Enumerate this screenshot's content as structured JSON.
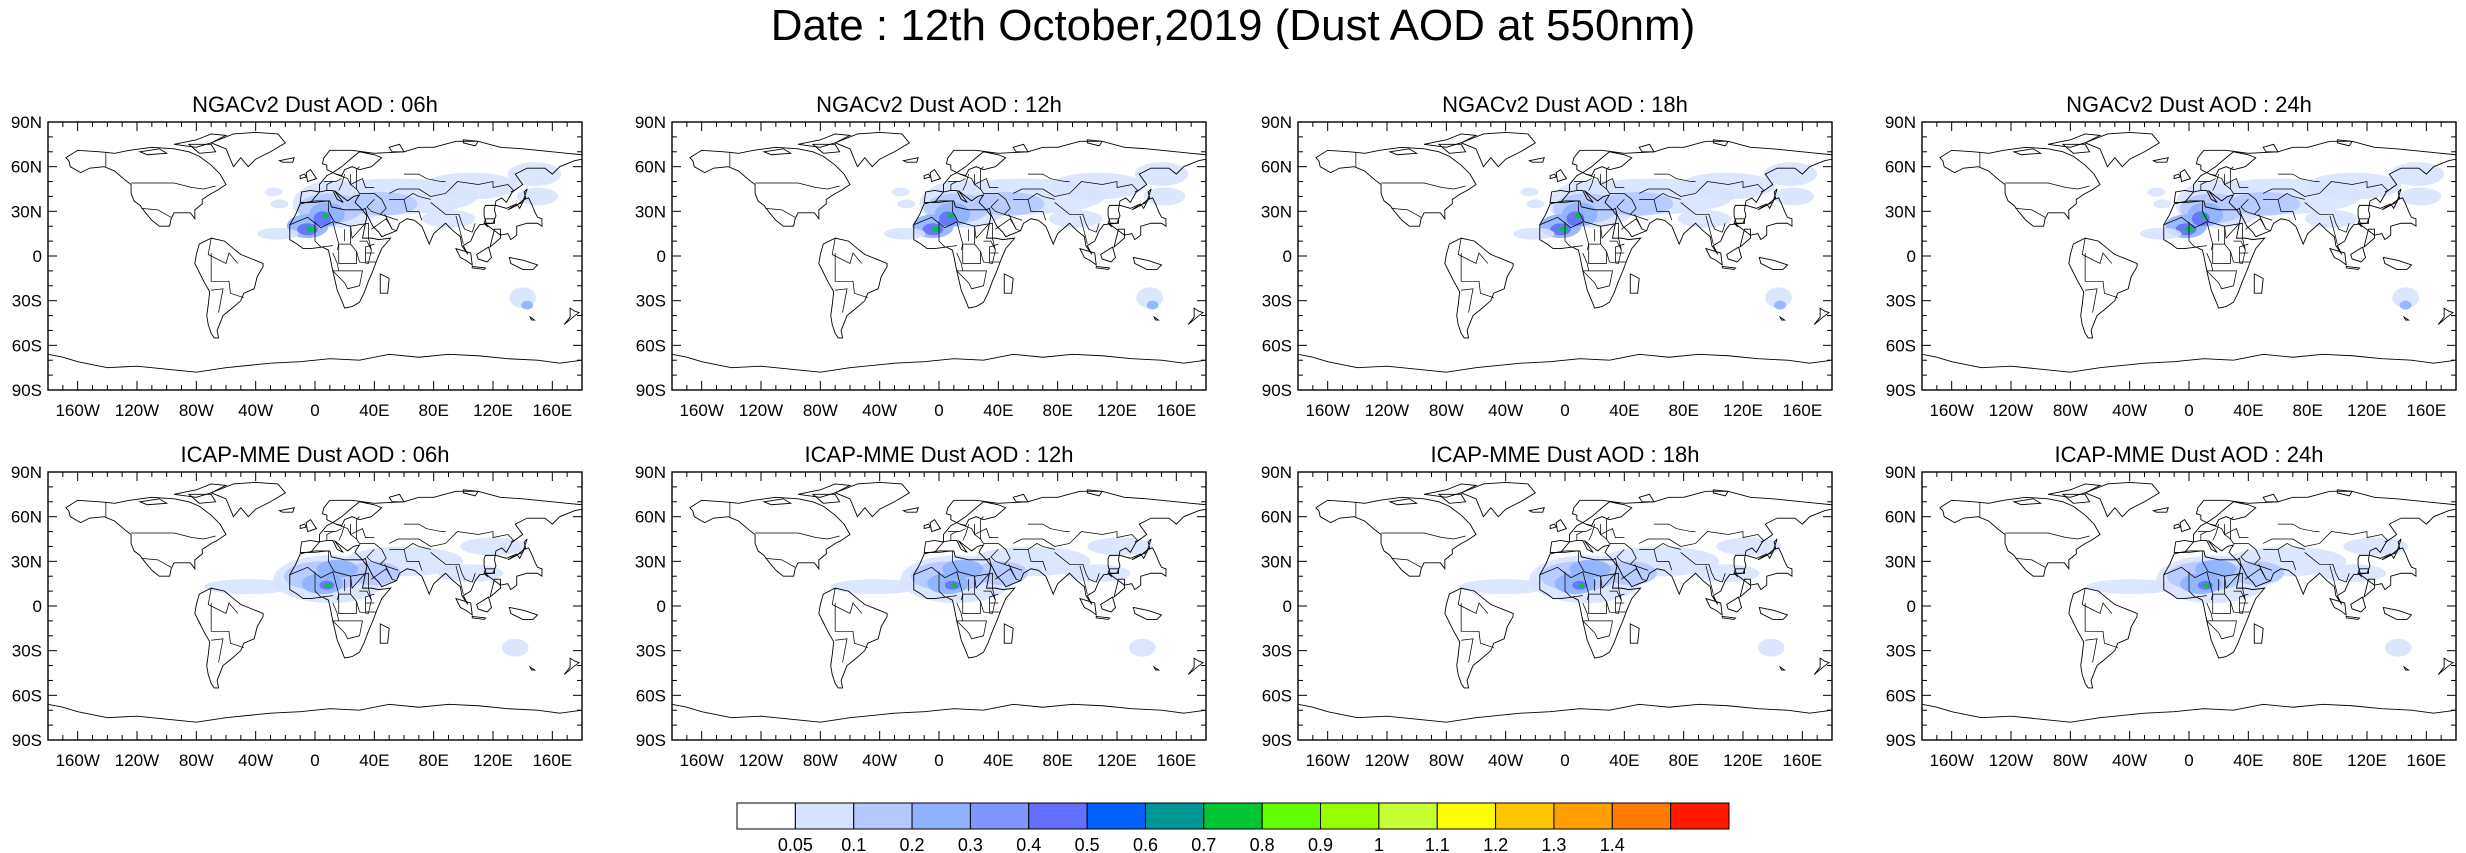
{
  "figure": {
    "title": "Date : 12th October,2019 (Dust AOD at 550nm)"
  },
  "panels": [
    {
      "title": "NGACv2 Dust AOD : 06h",
      "model": "NGACv2",
      "lead": "06h"
    },
    {
      "title": "NGACv2 Dust AOD : 12h",
      "model": "NGACv2",
      "lead": "12h"
    },
    {
      "title": "NGACv2 Dust AOD : 18h",
      "model": "NGACv2",
      "lead": "18h"
    },
    {
      "title": "NGACv2 Dust AOD : 24h",
      "model": "NGACv2",
      "lead": "24h"
    },
    {
      "title": "ICAP-MME Dust AOD : 06h",
      "model": "ICAP-MME",
      "lead": "06h"
    },
    {
      "title": "ICAP-MME Dust AOD : 12h",
      "model": "ICAP-MME",
      "lead": "12h"
    },
    {
      "title": "ICAP-MME Dust AOD : 18h",
      "model": "ICAP-MME",
      "lead": "18h"
    },
    {
      "title": "ICAP-MME Dust AOD : 24h",
      "model": "ICAP-MME",
      "lead": "24h"
    }
  ],
  "axes": {
    "lon_ticks": [
      {
        "value": -160,
        "label": "160W"
      },
      {
        "value": -120,
        "label": "120W"
      },
      {
        "value": -80,
        "label": "80W"
      },
      {
        "value": -40,
        "label": "40W"
      },
      {
        "value": 0,
        "label": "0"
      },
      {
        "value": 40,
        "label": "40E"
      },
      {
        "value": 80,
        "label": "80E"
      },
      {
        "value": 120,
        "label": "120E"
      },
      {
        "value": 160,
        "label": "160E"
      }
    ],
    "lat_ticks": [
      {
        "value": 90,
        "label": "90N"
      },
      {
        "value": 60,
        "label": "60N"
      },
      {
        "value": 30,
        "label": "30N"
      },
      {
        "value": 0,
        "label": "0"
      },
      {
        "value": -30,
        "label": "30S"
      },
      {
        "value": -60,
        "label": "60S"
      },
      {
        "value": -90,
        "label": "90S"
      }
    ],
    "lon_range": [
      -180,
      180
    ],
    "lat_range": [
      -90,
      90
    ]
  },
  "colorbar": {
    "colors": [
      "#ffffff",
      "#d6e2ff",
      "#b5c9ff",
      "#8eb2ff",
      "#7f96ff",
      "#6370ff",
      "#0063ff",
      "#009696",
      "#00c633",
      "#63ff00",
      "#96ff00",
      "#c6ff33",
      "#ffff00",
      "#ffc600",
      "#ffa000",
      "#ff7c00",
      "#ff1900"
    ],
    "labels": [
      "0.05",
      "0.1",
      "0.2",
      "0.3",
      "0.4",
      "0.5",
      "0.6",
      "0.7",
      "0.8",
      "0.9",
      "1",
      "1.1",
      "1.2",
      "1.3",
      "1.4"
    ]
  }
}
